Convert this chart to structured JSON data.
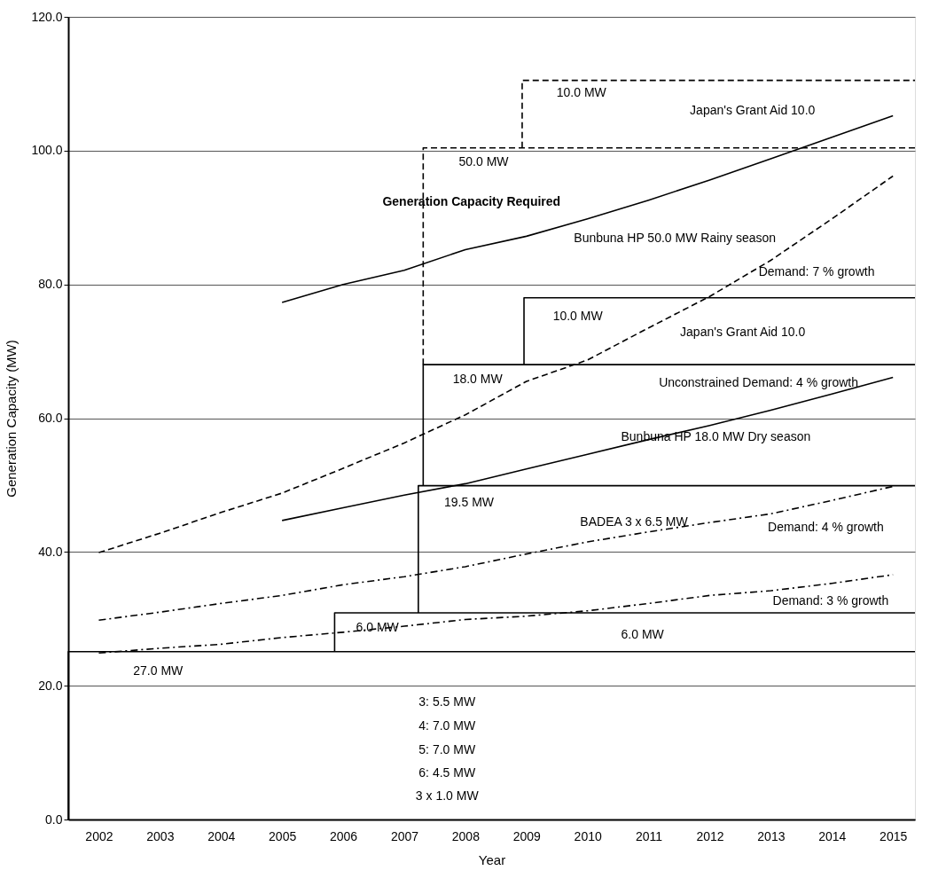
{
  "chart_data": {
    "type": "line",
    "xlabel": "Year",
    "ylabel": "Generation Capacity (MW)",
    "xlim": [
      2001.5,
      2015.36
    ],
    "xticks": [
      2002,
      2003,
      2004,
      2005,
      2006,
      2007,
      2008,
      2009,
      2010,
      2011,
      2012,
      2013,
      2014,
      2015
    ],
    "ylim": [
      0,
      120
    ],
    "yticks": [
      {
        "value": 0,
        "label": "0.0"
      },
      {
        "value": 20,
        "label": "20.0"
      },
      {
        "value": 40,
        "label": "40.0"
      },
      {
        "value": 60,
        "label": "60.0"
      },
      {
        "value": 80,
        "label": "80.0"
      },
      {
        "value": 100,
        "label": "100.0"
      },
      {
        "value": 120,
        "label": "120.0"
      }
    ],
    "grid": "y",
    "marker": "none",
    "series": [
      {
        "color": "#000000",
        "line_style": "solid",
        "x": [
          2005,
          2006,
          2007,
          2008,
          2009,
          2010,
          2011,
          2012,
          2013,
          2014,
          2015
        ],
        "values": [
          77.3,
          80.0,
          82.1,
          85.2,
          87.2,
          89.8,
          92.6,
          95.6,
          98.8,
          102.0,
          105.2
        ]
      },
      {
        "color": "#000000",
        "line_style": "dashed",
        "x": [
          2002,
          2003,
          2004,
          2005,
          2006,
          2007,
          2008,
          2009,
          2010,
          2011,
          2012,
          2013,
          2014,
          2015
        ],
        "values": [
          39.9,
          42.8,
          45.9,
          48.8,
          52.5,
          56.3,
          60.5,
          65.5,
          68.7,
          73.5,
          78.2,
          83.6,
          89.8,
          96.2
        ]
      },
      {
        "color": "#000000",
        "line_style": "solid",
        "x": [
          2005,
          2006,
          2007,
          2008,
          2009,
          2010,
          2011,
          2012,
          2013,
          2014,
          2015
        ],
        "values": [
          44.7,
          46.6,
          48.5,
          50.2,
          52.4,
          54.6,
          56.8,
          58.9,
          61.2,
          63.6,
          66.1
        ]
      },
      {
        "color": "#000000",
        "line_style": "dashdot",
        "x": [
          2002,
          2003,
          2004,
          2005,
          2006,
          2007,
          2008,
          2009,
          2010,
          2011,
          2012,
          2013,
          2014,
          2015
        ],
        "values": [
          29.8,
          31.0,
          32.3,
          33.5,
          35.1,
          36.3,
          37.8,
          39.7,
          41.5,
          43.0,
          44.4,
          45.7,
          47.7,
          49.8
        ]
      },
      {
        "color": "#000000",
        "line_style": "dashdot",
        "x": [
          2002,
          2003,
          2004,
          2005,
          2006,
          2007,
          2008,
          2009,
          2010,
          2011,
          2012,
          2013,
          2014,
          2015
        ],
        "values": [
          24.9,
          25.6,
          26.2,
          27.2,
          28.0,
          28.9,
          29.9,
          30.4,
          31.2,
          32.3,
          33.5,
          34.2,
          35.3,
          36.6
        ]
      },
      {
        "color": "#000000",
        "line_style": "solid",
        "x": [
          2001.5,
          2001.5,
          2015.36
        ],
        "values": [
          0,
          25.1,
          25.1
        ]
      },
      {
        "color": "#000000",
        "line_style": "solid",
        "x": [
          2005.86,
          2005.86,
          2015.36
        ],
        "values": [
          25.1,
          30.9,
          30.9
        ]
      },
      {
        "color": "#000000",
        "line_style": "solid",
        "x": [
          2007.23,
          2007.23,
          2015.36
        ],
        "values": [
          30.9,
          49.9,
          49.9
        ]
      },
      {
        "color": "#000000",
        "line_style": "solid",
        "x": [
          2007.31,
          2007.31,
          2015.36
        ],
        "values": [
          49.9,
          68.0,
          68.0
        ]
      },
      {
        "color": "#000000",
        "line_style": "solid",
        "x": [
          2008.96,
          2008.96,
          2015.36
        ],
        "values": [
          68.0,
          78.0,
          78.0
        ]
      },
      {
        "color": "#000000",
        "line_style": "dashed",
        "x": [
          2007.31,
          2007.31,
          2015.36
        ],
        "values": [
          68.0,
          100.4,
          100.4
        ]
      },
      {
        "color": "#000000",
        "line_style": "dashed",
        "x": [
          2008.93,
          2008.93,
          2015.36
        ],
        "values": [
          100.4,
          110.5,
          110.5
        ]
      }
    ],
    "annotations": [
      "Generation Capacity Required",
      "10.0 MW",
      "Japan's Grant Aid 10.0",
      "50.0 MW",
      "Bunbuna HP 50.0 MW Rainy season",
      "Demand: 7 % growth",
      "10.0 MW",
      "Japan's Grant Aid 10.0",
      "18.0 MW",
      "Unconstrained Demand: 4 % growth",
      "Bunbuna HP 18.0 MW Dry season",
      "19.5 MW",
      "BADEA 3 x 6.5 MW",
      "Demand: 4 % growth",
      "Demand: 3 % growth",
      "6.0 MW",
      "6.0 MW",
      "27.0 MW",
      "3: 5.5 MW",
      "4: 7.0 MW",
      "5: 7.0 MW",
      "6: 4.5 MW",
      "3 x 1.0 MW"
    ]
  }
}
